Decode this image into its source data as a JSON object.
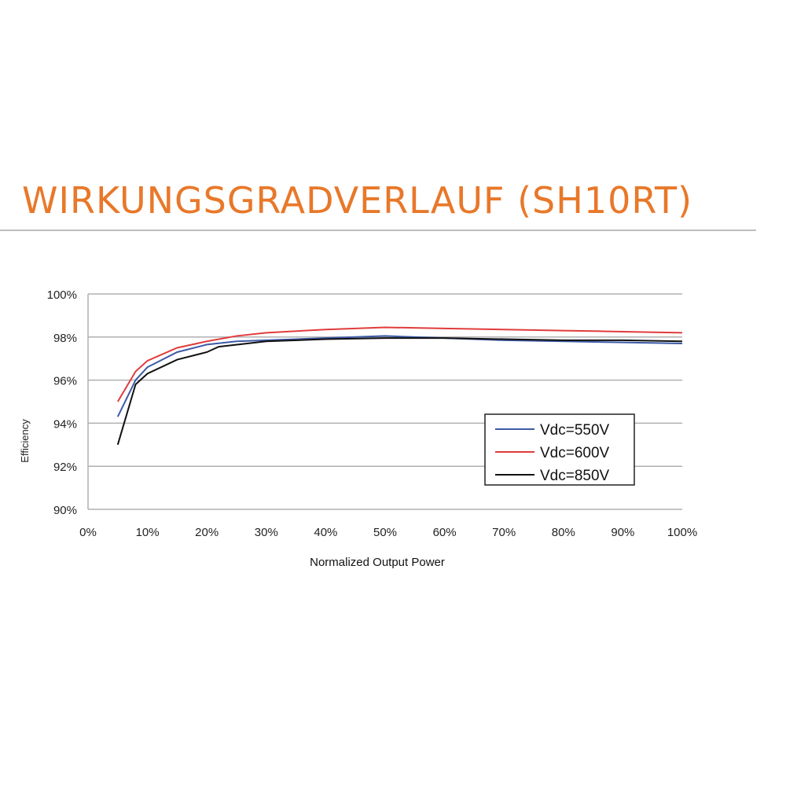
{
  "chart_data": {
    "type": "line",
    "title": "WIRKUNGSGRADVERLAUF (SH10RT)",
    "xlabel": "Normalized Output Power",
    "ylabel": "Efficiency",
    "xlim": [
      0,
      100
    ],
    "ylim": [
      90,
      100
    ],
    "x_ticks": [
      "0%",
      "10%",
      "20%",
      "30%",
      "40%",
      "50%",
      "60%",
      "70%",
      "80%",
      "90%",
      "100%"
    ],
    "y_ticks": [
      "90%",
      "92%",
      "94%",
      "96%",
      "98%",
      "100%"
    ],
    "grid": "horizontal",
    "legend_position": "right",
    "series": [
      {
        "name": "Vdc=550V",
        "color": "#3c5aa6",
        "x": [
          5,
          8,
          10,
          15,
          20,
          25,
          30,
          40,
          50,
          60,
          70,
          80,
          90,
          100
        ],
        "values": [
          94.3,
          96.0,
          96.6,
          97.3,
          97.65,
          97.8,
          97.85,
          97.95,
          98.05,
          97.95,
          97.85,
          97.8,
          97.75,
          97.7
        ]
      },
      {
        "name": "Vdc=600V",
        "color": "#e03c3c",
        "x": [
          5,
          8,
          10,
          15,
          20,
          25,
          30,
          40,
          50,
          60,
          70,
          80,
          90,
          100
        ],
        "values": [
          95.0,
          96.4,
          96.9,
          97.5,
          97.8,
          98.05,
          98.2,
          98.35,
          98.45,
          98.4,
          98.35,
          98.3,
          98.25,
          98.2
        ]
      },
      {
        "name": "Vdc=850V",
        "color": "#111111",
        "x": [
          5,
          8,
          10,
          15,
          20,
          22,
          30,
          40,
          50,
          60,
          70,
          80,
          90,
          100
        ],
        "values": [
          93.0,
          95.8,
          96.3,
          96.95,
          97.3,
          97.55,
          97.8,
          97.9,
          97.95,
          97.95,
          97.9,
          97.85,
          97.85,
          97.8
        ]
      }
    ]
  }
}
